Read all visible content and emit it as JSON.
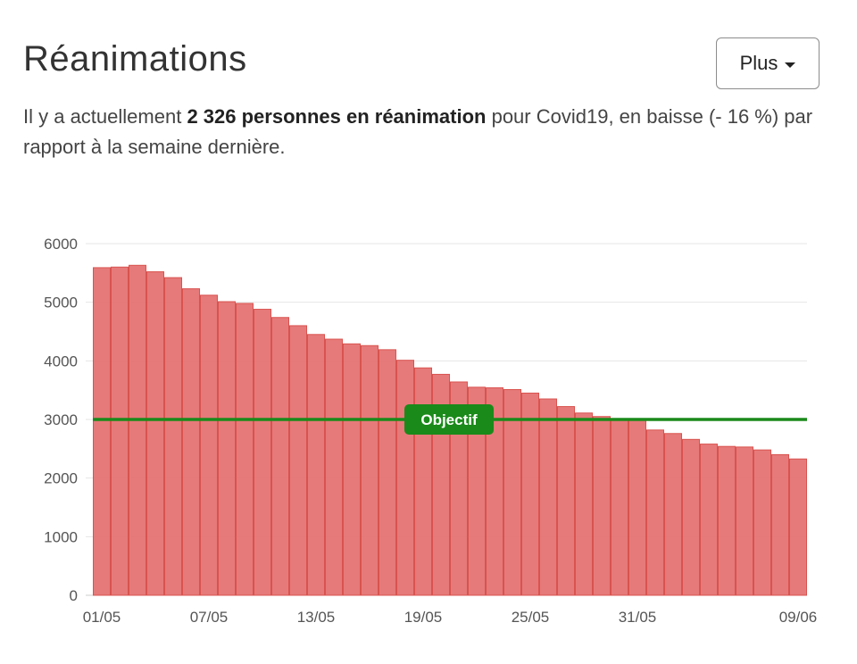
{
  "header": {
    "title": "Réanimations",
    "more_label": "Plus"
  },
  "summary": {
    "prefix": "Il y a actuellement ",
    "highlight": "2 326 personnes en réanimation",
    "suffix": " pour Covid19, en baisse (- 16 %) par rapport à la semaine dernière."
  },
  "colors": {
    "bar": "#e57373",
    "bar_stroke": "#d9534f",
    "objective": "#1a8a1a",
    "grid": "#e6e6e6"
  },
  "chart_data": {
    "type": "bar",
    "title": "",
    "xlabel": "",
    "ylabel": "",
    "ylim": [
      0,
      6000
    ],
    "yticks": [
      0,
      1000,
      2000,
      3000,
      4000,
      5000,
      6000
    ],
    "grid": true,
    "categories": [
      "01/05",
      "02/05",
      "03/05",
      "04/05",
      "05/05",
      "06/05",
      "07/05",
      "08/05",
      "09/05",
      "10/05",
      "11/05",
      "12/05",
      "13/05",
      "14/05",
      "15/05",
      "16/05",
      "17/05",
      "18/05",
      "19/05",
      "20/05",
      "21/05",
      "22/05",
      "23/05",
      "24/05",
      "25/05",
      "26/05",
      "27/05",
      "28/05",
      "29/05",
      "30/05",
      "31/05",
      "01/06",
      "02/06",
      "03/06",
      "04/06",
      "05/06",
      "06/06",
      "07/06",
      "08/06",
      "09/06"
    ],
    "xtick_labels": [
      "01/05",
      "07/05",
      "13/05",
      "19/05",
      "25/05",
      "31/05",
      "09/06"
    ],
    "xtick_indices": [
      0,
      6,
      12,
      18,
      24,
      30,
      39
    ],
    "series": [
      {
        "values": [
          5590,
          5600,
          5630,
          5520,
          5420,
          5230,
          5120,
          5010,
          4980,
          4880,
          4740,
          4600,
          4450,
          4370,
          4290,
          4260,
          4190,
          4010,
          3880,
          3770,
          3640,
          3550,
          3540,
          3510,
          3450,
          3350,
          3220,
          3110,
          3050,
          3000,
          2990,
          2820,
          2760,
          2660,
          2580,
          2540,
          2530,
          2480,
          2400,
          2326
        ]
      }
    ],
    "reference_line": {
      "label": "Objectif",
      "value": 3000
    }
  }
}
